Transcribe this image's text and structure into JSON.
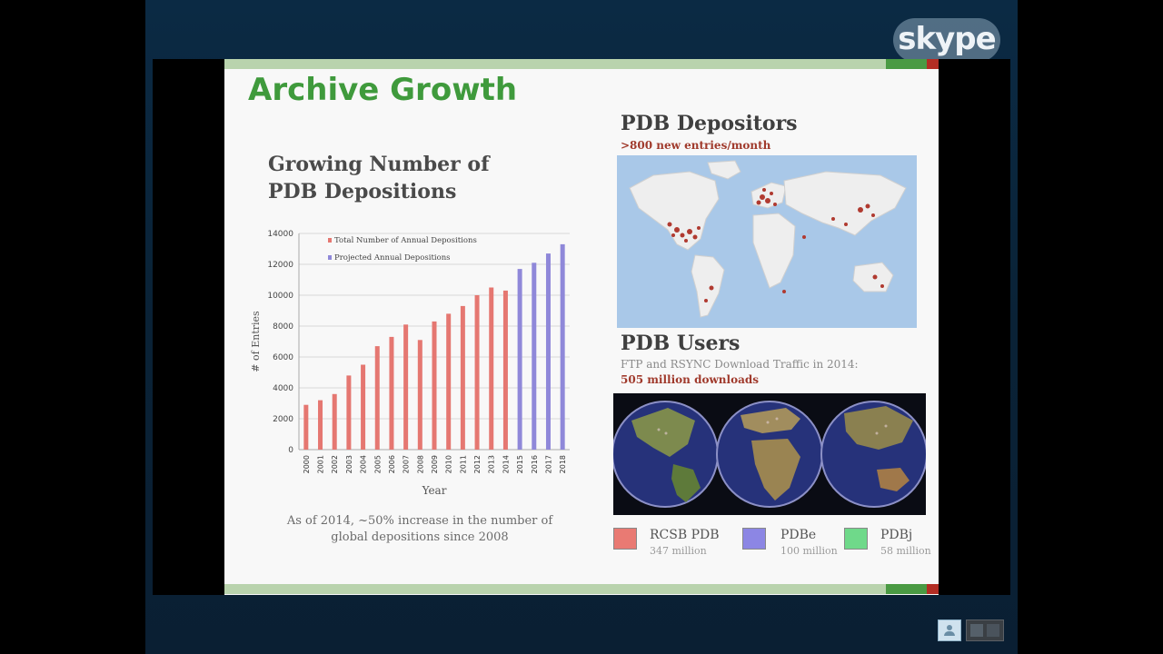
{
  "app": {
    "logo_text": "skype"
  },
  "slide": {
    "title": "Archive Growth",
    "chart_heading": [
      "Growing Number of",
      "PDB Depositions"
    ],
    "caption": [
      "As of 2014, ~50% increase in the number of",
      "global depositions since 2008"
    ],
    "depositors": {
      "title": "PDB Depositors",
      "subtitle": ">800 new entries/month"
    },
    "users": {
      "title": "PDB Users",
      "subtitle": "FTP and RSYNC Download Traffic in 2014:",
      "highlight": "505 million downloads"
    },
    "legend": [
      {
        "name": "RCSB PDB",
        "count": "347 million",
        "color": "#e97a73"
      },
      {
        "name": "PDBe",
        "count": "100 million",
        "color": "#8c86e4"
      },
      {
        "name": "PDBj",
        "count": "58 million",
        "color": "#6fd98a"
      }
    ]
  },
  "chart_data": {
    "type": "bar",
    "title": "",
    "xlabel": "Year",
    "ylabel": "# of Entries",
    "ylim": [
      0,
      14000
    ],
    "yticks": [
      0,
      2000,
      4000,
      6000,
      8000,
      10000,
      12000,
      14000
    ],
    "grid": true,
    "legend_position": "top-left",
    "categories": [
      "2000",
      "2001",
      "2002",
      "2003",
      "2004",
      "2005",
      "2006",
      "2007",
      "2008",
      "2009",
      "2010",
      "2011",
      "2012",
      "2013",
      "2014",
      "2015",
      "2016",
      "2017",
      "2018"
    ],
    "series": [
      {
        "name": "Total Number of Annual Depositions",
        "color": "#e57771",
        "values": [
          2900,
          3200,
          3600,
          4800,
          5500,
          6700,
          7300,
          8100,
          7100,
          8300,
          8800,
          9300,
          10000,
          10500,
          10300,
          null,
          null,
          null,
          null
        ]
      },
      {
        "name": "Projected Annual Depositions",
        "color": "#8f88d9",
        "values": [
          null,
          null,
          null,
          null,
          null,
          null,
          null,
          null,
          null,
          null,
          null,
          null,
          null,
          null,
          null,
          11700,
          12100,
          12700,
          13300
        ]
      }
    ]
  },
  "controls": {
    "self_view_icon": "person-icon",
    "screen_icon": "screen-share-icon"
  }
}
